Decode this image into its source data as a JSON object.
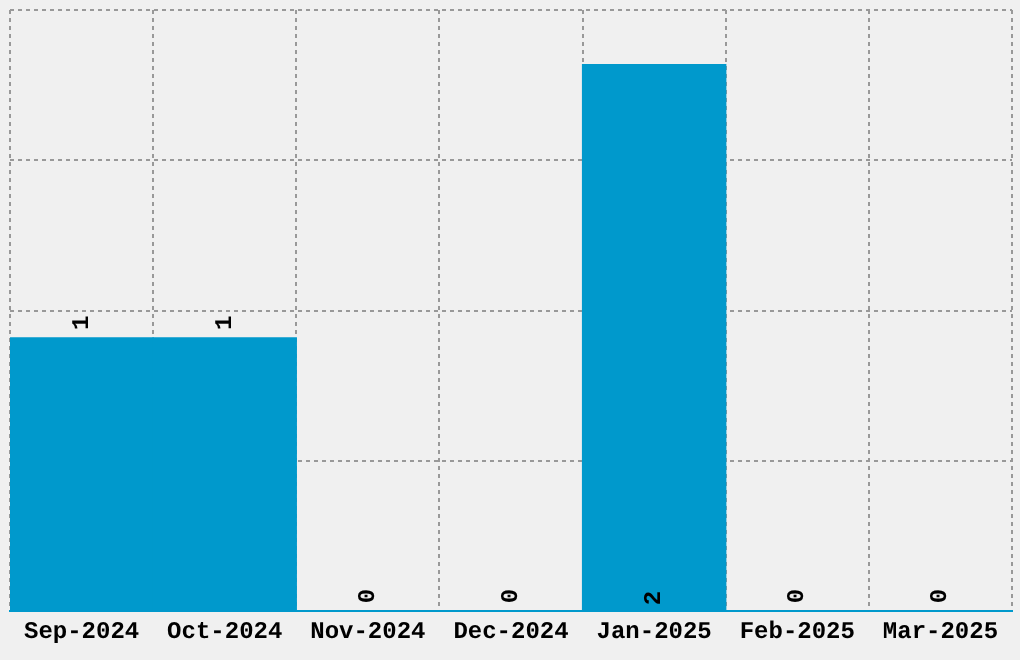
{
  "chart_data": {
    "type": "bar",
    "categories": [
      "Sep-2024",
      "Oct-2024",
      "Nov-2024",
      "Dec-2024",
      "Jan-2025",
      "Feb-2025",
      "Mar-2025"
    ],
    "values": [
      1,
      1,
      0,
      0,
      2,
      0,
      0
    ],
    "color": "#0099cc",
    "ylim": [
      0,
      2.2
    ],
    "yticks": [
      {
        "value": 0,
        "label": null
      },
      {
        "value": 0.55,
        "label": null
      },
      {
        "value": 1.1,
        "label": null
      },
      {
        "value": 1.65,
        "label": null
      },
      {
        "value": 2.2,
        "label": null
      }
    ],
    "tick_labels": "x",
    "grid": true,
    "data_labels": true,
    "legend": false
  }
}
